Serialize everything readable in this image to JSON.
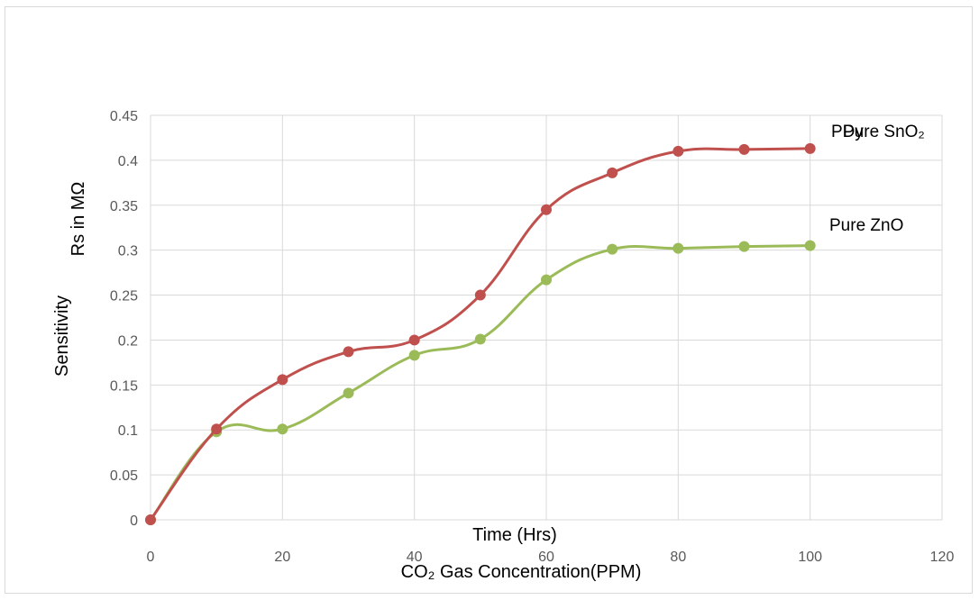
{
  "chart_data": {
    "type": "scatter",
    "smooth": true,
    "grid": true,
    "legend": "none",
    "xlim": [
      0,
      120
    ],
    "ylim": [
      0,
      0.45
    ],
    "x_ticks": [
      "0",
      "20",
      "40",
      "60",
      "80",
      "100",
      "120"
    ],
    "y_ticks": [
      "0",
      "0.05",
      "0.1",
      "0.15",
      "0.2",
      "0.25",
      "0.3",
      "0.35",
      "0.4",
      "0.45"
    ],
    "xlabel": "Time (Hrs)",
    "xlabel_secondary": "CO₂ Gas Concentration(PPM)",
    "ylabel": "Sensitivity",
    "ylabel_secondary": "Rs in MΩ",
    "x": [
      0,
      10,
      20,
      30,
      40,
      50,
      60,
      70,
      80,
      90,
      100
    ],
    "series": [
      {
        "name": "Pure SnO₂",
        "overlap_label": "PDy",
        "color": "#c0504d",
        "values": [
          0,
          0.101,
          0.156,
          0.187,
          0.2,
          0.25,
          0.345,
          0.386,
          0.41,
          0.412,
          0.413
        ]
      },
      {
        "name": "Pure ZnO",
        "color": "#9bbb59",
        "values": [
          0,
          0.098,
          0.101,
          0.141,
          0.183,
          0.201,
          0.267,
          0.301,
          0.302,
          0.304,
          0.305
        ]
      }
    ]
  }
}
